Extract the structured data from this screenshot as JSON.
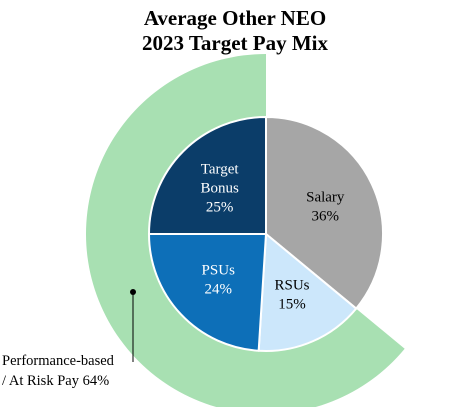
{
  "title_lines": [
    "Average Other NEO",
    "2023 Target Pay Mix"
  ],
  "chart_data": {
    "type": "pie",
    "slices": [
      {
        "lines": [
          "Salary",
          "36%"
        ],
        "value": 36,
        "color": "#a6a6a6",
        "text_color": "#000000"
      },
      {
        "lines": [
          "RSUs",
          "15%"
        ],
        "value": 15,
        "color": "#cce7fb",
        "text_color": "#000000"
      },
      {
        "lines": [
          "PSUs",
          "24%"
        ],
        "value": 24,
        "color": "#0d6fb8",
        "text_color": "#ffffff"
      },
      {
        "lines": [
          "Target",
          "Bonus",
          "25%"
        ],
        "value": 25,
        "color": "#0b3d69",
        "text_color": "#ffffff"
      }
    ],
    "outer_ring": {
      "label_lines": [
        "Performance-based",
        "/ At Risk Pay 64%"
      ],
      "value": 64,
      "color": "#a8e0b2"
    }
  }
}
